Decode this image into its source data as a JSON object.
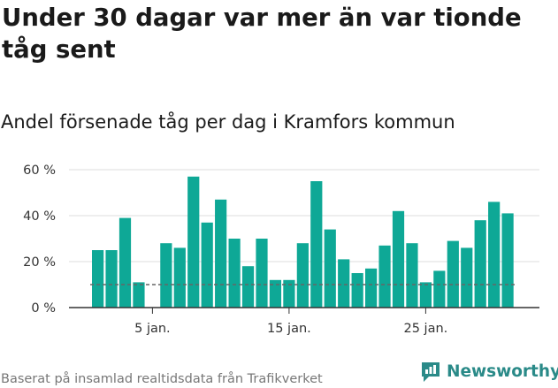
{
  "header": {
    "title": "Under 30 dagar var mer än var tionde tåg sent",
    "subtitle": "Andel försenade tåg per dag i Kramfors kommun"
  },
  "footer": {
    "source": "Baserat på insamlad realtidsdata från Trafikverket",
    "brand": "Newsworthy"
  },
  "colors": {
    "bar": "#0ea896",
    "reference_line": "#666666",
    "grid": "#dddddd",
    "axis": "#333333",
    "brand": "#2a8a88"
  },
  "chart_data": {
    "type": "bar",
    "title": "Andel försenade tåg per dag i Kramfors kommun",
    "xlabel": "",
    "ylabel": "",
    "x": [
      1,
      2,
      3,
      4,
      5,
      6,
      7,
      8,
      9,
      10,
      11,
      12,
      13,
      14,
      15,
      16,
      17,
      18,
      19,
      20,
      21,
      22,
      23,
      24,
      25,
      26,
      27,
      28,
      29,
      30,
      31
    ],
    "values": [
      25,
      25,
      39,
      11,
      null,
      28,
      26,
      57,
      37,
      47,
      30,
      18,
      30,
      12,
      12,
      28,
      55,
      34,
      21,
      15,
      17,
      27,
      42,
      28,
      11,
      16,
      29,
      26,
      38,
      46,
      41
    ],
    "ylim": [
      0,
      60
    ],
    "yticks": [
      0,
      20,
      40,
      60
    ],
    "ytick_labels": [
      "0 %",
      "20 %",
      "40 %",
      "60 %"
    ],
    "xticks": [
      5,
      15,
      25
    ],
    "xtick_labels": [
      "5 jan.",
      "15 jan.",
      "25 jan."
    ],
    "reference_line": 10,
    "grid": true
  }
}
